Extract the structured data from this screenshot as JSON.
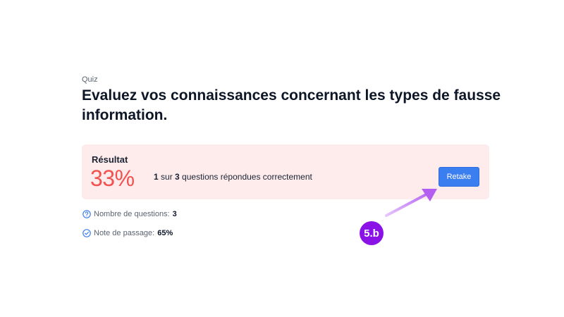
{
  "quiz": {
    "eyebrow": "Quiz",
    "title": "Evaluez vos connaissances concernant les types de fausse information."
  },
  "result": {
    "label": "Résultat",
    "percent": "33%",
    "correct_count": "1",
    "sur": " sur ",
    "total_count": "3",
    "summary_suffix": " questions répondues correctement",
    "retake_label": "Retake"
  },
  "info": {
    "questions_label": "Nombre de questions:",
    "questions_value": "3",
    "pass_label": "Note de passage:",
    "pass_value": "65%"
  },
  "annotation": {
    "step_label": "5.b",
    "badge_color": "#8a12e6",
    "arrow_color": "#c07cf0"
  },
  "colors": {
    "accent": "#3b7ef0",
    "score": "#f0524f",
    "card_bg": "#fdeceb"
  }
}
